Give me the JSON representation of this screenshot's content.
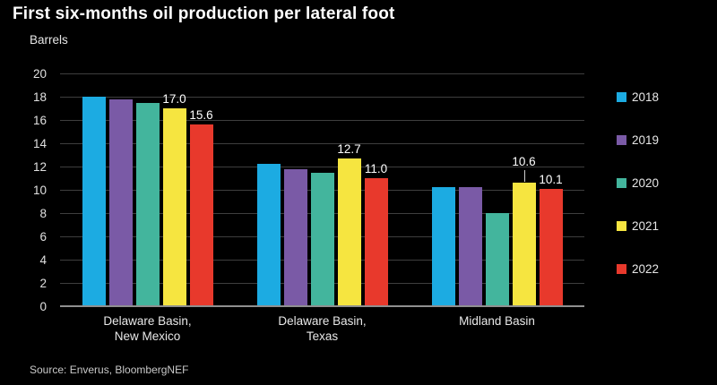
{
  "title": "First six-months oil production per lateral foot",
  "source": "Source: Enverus, BloombergNEF",
  "colors": {
    "background": "#000000",
    "gridline": "#3e3e3e",
    "zero_line": "#8f8f8f",
    "text": "#ffffff"
  },
  "chart_data": {
    "type": "bar",
    "title": "First six-months oil production per lateral foot",
    "ylabel": "Barrels",
    "xlabel": "",
    "ylim": [
      0,
      20
    ],
    "ytick_step": 2,
    "grid": true,
    "legend_position": "right",
    "categories": [
      "Delaware Basin, New Mexico",
      "Delaware Basin, Texas",
      "Midland Basin"
    ],
    "category_label_lines": [
      [
        "Delaware Basin,",
        "New Mexico"
      ],
      [
        "Delaware Basin,",
        "Texas"
      ],
      [
        "Midland Basin"
      ]
    ],
    "series": [
      {
        "name": "2018",
        "color": "#1cabe2",
        "values": [
          18.0,
          12.2,
          10.2
        ],
        "labels": [
          null,
          null,
          null
        ],
        "leader": [
          false,
          false,
          false
        ]
      },
      {
        "name": "2019",
        "color": "#7a5aa6",
        "values": [
          17.8,
          11.8,
          10.2
        ],
        "labels": [
          null,
          null,
          null
        ],
        "leader": [
          false,
          false,
          false
        ]
      },
      {
        "name": "2020",
        "color": "#43b59d",
        "values": [
          17.5,
          11.5,
          8.0
        ],
        "labels": [
          null,
          null,
          null
        ],
        "leader": [
          false,
          false,
          false
        ]
      },
      {
        "name": "2021",
        "color": "#f6e540",
        "values": [
          17.0,
          12.7,
          10.6
        ],
        "labels": [
          "17.0",
          "12.7",
          "10.6"
        ],
        "leader": [
          false,
          false,
          true
        ]
      },
      {
        "name": "2022",
        "color": "#e8392c",
        "values": [
          15.6,
          11.0,
          10.1
        ],
        "labels": [
          "15.6",
          "11.0",
          "10.1"
        ],
        "leader": [
          false,
          false,
          false
        ]
      }
    ]
  }
}
